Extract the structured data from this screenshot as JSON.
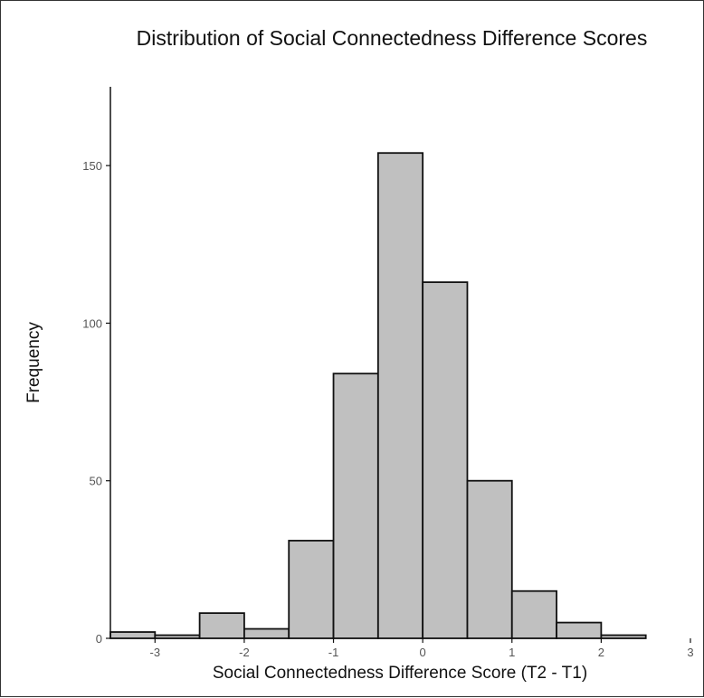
{
  "chart_data": {
    "type": "bar",
    "title": "Distribution of Social Connectedness Difference Scores",
    "xlabel": "Social Connectedness Difference Score (T2 - T1)",
    "ylabel": "Frequency",
    "xlim": [
      -3.5,
      3
    ],
    "ylim": [
      0,
      175
    ],
    "x_ticks": [
      -3,
      -2,
      -1,
      0,
      1,
      2,
      3
    ],
    "y_ticks": [
      0,
      50,
      100,
      150
    ],
    "bin_width": 0.5,
    "bins": [
      {
        "start": -3.5,
        "end": -3.0,
        "count": 2
      },
      {
        "start": -3.0,
        "end": -2.5,
        "count": 1
      },
      {
        "start": -2.5,
        "end": -2.0,
        "count": 8
      },
      {
        "start": -2.0,
        "end": -1.5,
        "count": 3
      },
      {
        "start": -1.5,
        "end": -1.0,
        "count": 31
      },
      {
        "start": -1.0,
        "end": -0.5,
        "count": 84
      },
      {
        "start": -0.5,
        "end": 0.0,
        "count": 154
      },
      {
        "start": 0.0,
        "end": 0.5,
        "count": 113
      },
      {
        "start": 0.5,
        "end": 1.0,
        "count": 50
      },
      {
        "start": 1.0,
        "end": 1.5,
        "count": 15
      },
      {
        "start": 1.5,
        "end": 2.0,
        "count": 5
      },
      {
        "start": 2.0,
        "end": 2.5,
        "count": 1
      }
    ],
    "bar_fill": "#c0c0c0",
    "bar_stroke": "#111111",
    "grid": false
  }
}
